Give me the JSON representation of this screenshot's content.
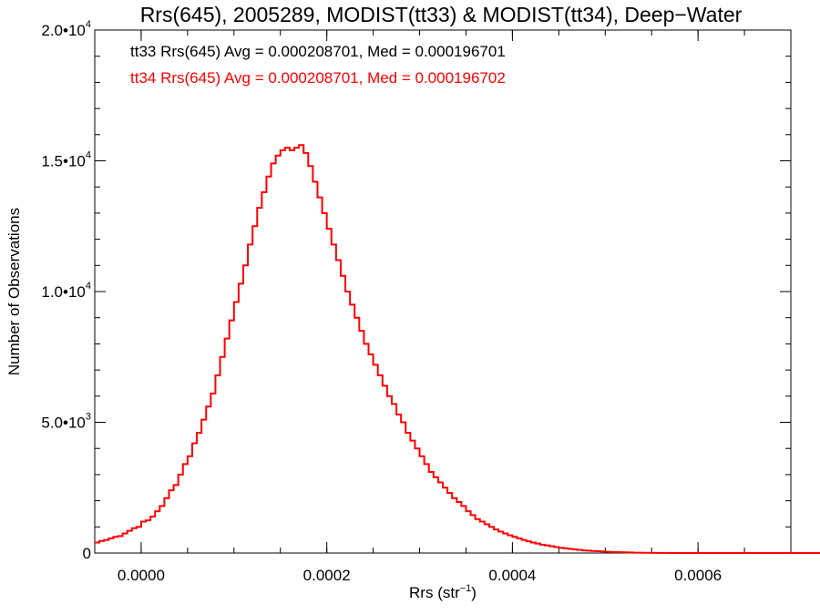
{
  "chart_data": {
    "type": "step",
    "title": "Rrs(645), 2005289, MODIST(tt33) & MODIST(tt34), Deep−Water",
    "xlabel_main": "Rrs (str",
    "xlabel_sup": "−1",
    "xlabel_close": ")",
    "ylabel": "Number of Observations",
    "xlim": [
      -5e-05,
      0.0007
    ],
    "ylim": [
      0,
      20000
    ],
    "x_ticks": [
      {
        "value": 0.0,
        "label": "0.0000"
      },
      {
        "value": 0.0002,
        "label": "0.0002"
      },
      {
        "value": 0.0004,
        "label": "0.0004"
      },
      {
        "value": 0.0006,
        "label": "0.0006"
      }
    ],
    "y_ticks": [
      {
        "value": 0,
        "label": "0",
        "sup": ""
      },
      {
        "value": 5000,
        "label": "5.0•10",
        "sup": "3"
      },
      {
        "value": 10000,
        "label": "1.0•10",
        "sup": "4"
      },
      {
        "value": 15000,
        "label": "1.5•10",
        "sup": "4"
      },
      {
        "value": 20000,
        "label": "2.0•10",
        "sup": "4"
      }
    ],
    "x_minor_step": 5e-05,
    "y_minor_step": 1000,
    "annotations": [
      {
        "text": "tt33 Rrs(645) Avg = 0.000208701, Med = 0.000196701",
        "color": "#000000"
      },
      {
        "text": "tt34 Rrs(645) Avg = 0.000208701, Med = 0.000196702",
        "color": "#ff0000"
      }
    ],
    "series": [
      {
        "color": "#ff0000",
        "bin_start": -5e-05,
        "bin_width": 5e-06,
        "counts": [
          400,
          460,
          500,
          560,
          620,
          650,
          750,
          850,
          950,
          1000,
          1200,
          1250,
          1400,
          1600,
          1800,
          2100,
          2400,
          2600,
          3000,
          3400,
          3700,
          4200,
          4600,
          5100,
          5600,
          6100,
          6800,
          7500,
          8200,
          8900,
          9600,
          10300,
          11000,
          11800,
          12500,
          13200,
          13800,
          14400,
          14900,
          15200,
          15400,
          15500,
          15400,
          15500,
          15600,
          15300,
          14800,
          14200,
          13600,
          13000,
          12400,
          11800,
          11200,
          10600,
          10000,
          9500,
          9000,
          8500,
          8000,
          7600,
          7200,
          6800,
          6400,
          6000,
          5700,
          5300,
          5000,
          4600,
          4300,
          4000,
          3700,
          3400,
          3100,
          2900,
          2700,
          2500,
          2300,
          2100,
          1950,
          1800,
          1600,
          1450,
          1300,
          1200,
          1100,
          1000,
          900,
          820,
          750,
          680,
          620,
          560,
          500,
          450,
          400,
          360,
          320,
          290,
          260,
          230,
          200,
          180,
          160,
          140,
          120,
          100,
          90,
          80,
          70,
          60,
          50,
          40,
          35,
          30,
          25,
          20,
          15,
          12,
          10,
          8,
          6,
          5,
          4,
          3,
          2,
          1,
          0,
          0,
          0,
          0,
          0,
          0,
          0,
          0,
          0,
          0,
          0,
          0,
          0,
          0,
          0,
          0,
          0,
          0,
          0,
          0,
          0,
          0,
          0,
          0,
          0,
          0,
          0,
          0,
          0,
          0,
          0,
          0,
          0
        ]
      }
    ]
  }
}
